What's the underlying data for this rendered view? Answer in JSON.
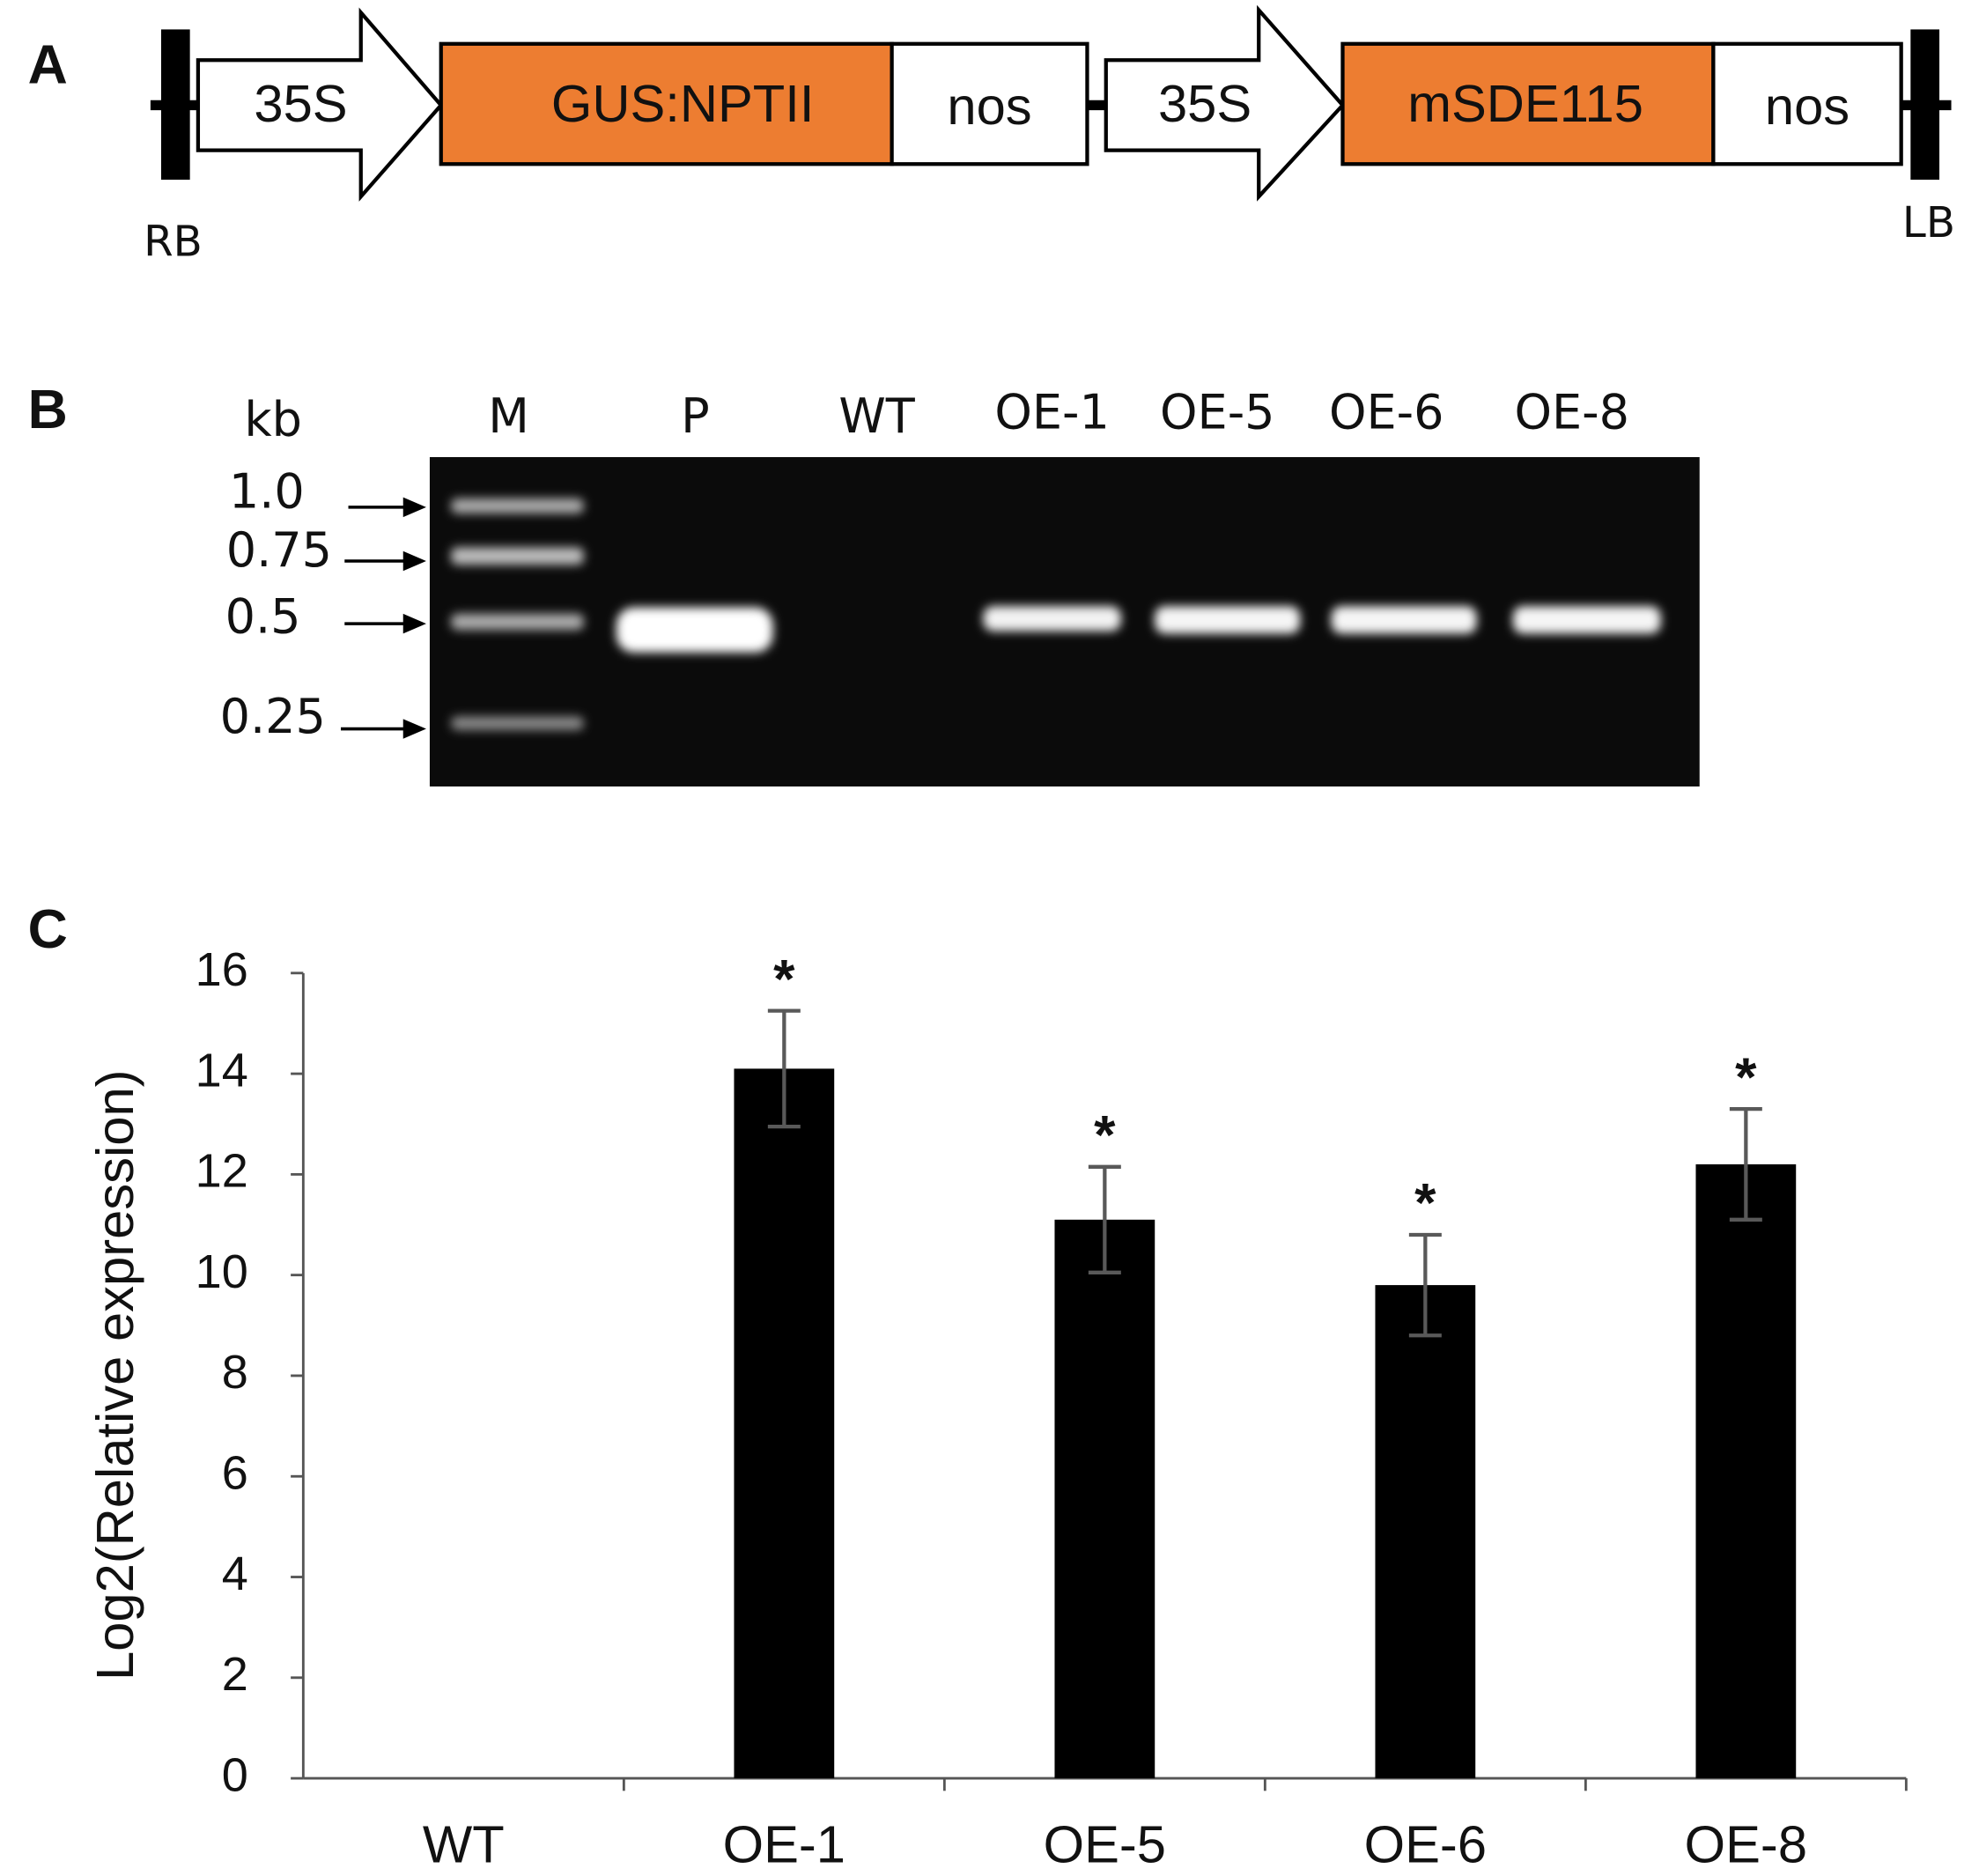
{
  "panel_a": {
    "label": "A",
    "elements": [
      "35S",
      "GUS:NPTII",
      "nos",
      "35S",
      "mSDE115",
      "nos"
    ],
    "left_border": "RB",
    "right_border": "LB"
  },
  "panel_b": {
    "label": "B",
    "unit": "kb",
    "lanes": [
      "M",
      "P",
      "WT",
      "OE-1",
      "OE-5",
      "OE-6",
      "OE-8"
    ],
    "marker_sizes": [
      "1.0",
      "0.75",
      "0.5",
      "0.25"
    ]
  },
  "chart_data": {
    "type": "bar",
    "panel_label": "C",
    "y_label": "Log2(Relative expression)",
    "categories": [
      "WT",
      "OE-1",
      "OE-5",
      "OE-6",
      "OE-8"
    ],
    "values": [
      0,
      14.1,
      11.1,
      9.8,
      12.2
    ],
    "errors": [
      null,
      1.15,
      1.05,
      1.0,
      1.1
    ],
    "significance": [
      null,
      "*",
      "*",
      "*",
      "*"
    ],
    "color": "#000000",
    "error_color": "#595959",
    "ylim": [
      0,
      16
    ],
    "yticks": [
      0,
      2,
      4,
      6,
      8,
      10,
      12,
      14,
      16
    ]
  }
}
